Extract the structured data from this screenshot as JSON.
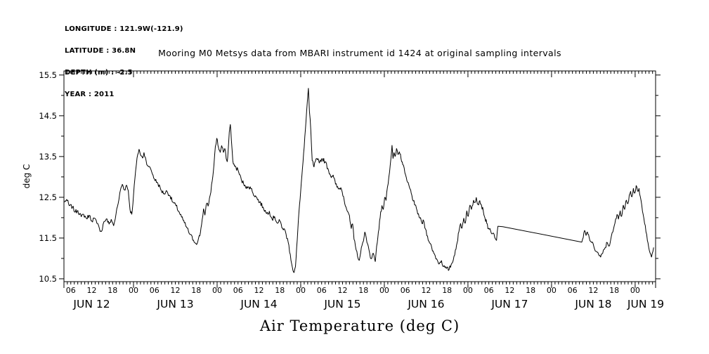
{
  "header": {
    "lines": [
      "LONGITUDE : 121.9W(-121.9)",
      "LATITUDE : 36.8N",
      "DEPTH (m) : -2.5",
      "YEAR : 2011"
    ]
  },
  "title": "Mooring M0 Metsys data from MBARI instrument id 1424 at original sampling intervals",
  "colors": {
    "foreground": "#000000",
    "background": "#ffffff"
  },
  "chart_data": {
    "type": "line",
    "title": "Mooring M0 Metsys data from MBARI instrument id 1424 at original sampling intervals",
    "xlabel": "Air Temperature (deg C)",
    "ylabel": "deg C",
    "x_unit": "hours since 2011-06-12 00:00",
    "x_range_hours": [
      4.03,
      173.87
    ],
    "ylim": [
      10.43,
      15.6
    ],
    "y_major_ticks": [
      10.5,
      11.5,
      12.5,
      13.5,
      14.5,
      15.5
    ],
    "y_tick_step": 0.5,
    "x_minor_tick_hours": 1,
    "x_hour_label_step": 6,
    "hour_label_names": {
      "0": "00",
      "6": "06",
      "12": "12",
      "18": "18"
    },
    "month_label": "JUN",
    "day_numbers": [
      12,
      13,
      14,
      15,
      16,
      17,
      18,
      19
    ],
    "day_start_hours": [
      0,
      24,
      48,
      72,
      96,
      120,
      144,
      168
    ],
    "grid": false,
    "legend": "none",
    "line_color": "#000000",
    "gap_no_noise_hours": [
      128.6,
      152.7
    ],
    "noise_amp_degC": 0.055,
    "series": [
      {
        "name": "air temperature (deg C)",
        "points": [
          [
            4.2,
            12.38
          ],
          [
            4.8,
            12.45
          ],
          [
            5.5,
            12.3
          ],
          [
            6.5,
            12.26
          ],
          [
            7.3,
            12.14
          ],
          [
            8,
            12.18
          ],
          [
            9,
            12.02
          ],
          [
            9.7,
            12.08
          ],
          [
            10.5,
            11.98
          ],
          [
            11.3,
            12.06
          ],
          [
            12,
            11.92
          ],
          [
            12.7,
            11.99
          ],
          [
            13.5,
            11.86
          ],
          [
            14.2,
            11.74
          ],
          [
            14.8,
            11.66
          ],
          [
            15.5,
            11.9
          ],
          [
            16.2,
            11.97
          ],
          [
            17,
            11.84
          ],
          [
            17.6,
            11.96
          ],
          [
            18.3,
            11.8
          ],
          [
            19,
            12.1
          ],
          [
            19.6,
            12.35
          ],
          [
            20.3,
            12.7
          ],
          [
            20.8,
            12.82
          ],
          [
            21.4,
            12.68
          ],
          [
            22,
            12.8
          ],
          [
            22.5,
            12.66
          ],
          [
            23,
            12.2
          ],
          [
            23.5,
            12.08
          ],
          [
            24,
            12.55
          ],
          [
            24.6,
            13.15
          ],
          [
            25.2,
            13.55
          ],
          [
            25.6,
            13.68
          ],
          [
            26.1,
            13.52
          ],
          [
            26.6,
            13.46
          ],
          [
            27,
            13.6
          ],
          [
            27.6,
            13.4
          ],
          [
            28.3,
            13.25
          ],
          [
            29,
            13.18
          ],
          [
            30,
            12.95
          ],
          [
            31,
            12.84
          ],
          [
            32,
            12.66
          ],
          [
            32.8,
            12.59
          ],
          [
            33.6,
            12.65
          ],
          [
            34.5,
            12.53
          ],
          [
            35.3,
            12.38
          ],
          [
            36.2,
            12.29
          ],
          [
            37.2,
            12.12
          ],
          [
            38.2,
            11.94
          ],
          [
            39.2,
            11.77
          ],
          [
            40.2,
            11.59
          ],
          [
            41.2,
            11.45
          ],
          [
            41.9,
            11.37
          ],
          [
            42.5,
            11.43
          ],
          [
            43.2,
            11.63
          ],
          [
            43.7,
            11.95
          ],
          [
            44.1,
            12.22
          ],
          [
            44.5,
            12.06
          ],
          [
            45,
            12.35
          ],
          [
            45.4,
            12.28
          ],
          [
            46,
            12.55
          ],
          [
            46.6,
            12.9
          ],
          [
            47.1,
            13.3
          ],
          [
            47.5,
            13.75
          ],
          [
            47.9,
            13.95
          ],
          [
            48.4,
            13.72
          ],
          [
            48.9,
            13.6
          ],
          [
            49.3,
            13.77
          ],
          [
            49.8,
            13.6
          ],
          [
            50.2,
            13.7
          ],
          [
            50.6,
            13.45
          ],
          [
            50.9,
            13.37
          ],
          [
            51.2,
            13.7
          ],
          [
            51.5,
            14.1
          ],
          [
            51.8,
            14.29
          ],
          [
            52.1,
            13.9
          ],
          [
            52.5,
            13.4
          ],
          [
            53,
            13.26
          ],
          [
            54,
            13.17
          ],
          [
            55,
            12.91
          ],
          [
            56,
            12.8
          ],
          [
            56.7,
            12.72
          ],
          [
            57.5,
            12.76
          ],
          [
            58.3,
            12.6
          ],
          [
            59.2,
            12.51
          ],
          [
            60.2,
            12.38
          ],
          [
            61.2,
            12.26
          ],
          [
            62.2,
            12.1
          ],
          [
            63,
            12.16
          ],
          [
            63.8,
            11.96
          ],
          [
            64.5,
            12.03
          ],
          [
            65.3,
            11.86
          ],
          [
            66,
            11.92
          ],
          [
            66.8,
            11.74
          ],
          [
            67.6,
            11.66
          ],
          [
            68.4,
            11.4
          ],
          [
            69,
            11.1
          ],
          [
            69.6,
            10.78
          ],
          [
            70.1,
            10.65
          ],
          [
            70.5,
            10.8
          ],
          [
            71,
            11.45
          ],
          [
            71.5,
            12.15
          ],
          [
            72,
            12.67
          ],
          [
            72.5,
            13.2
          ],
          [
            73,
            13.73
          ],
          [
            73.5,
            14.35
          ],
          [
            73.9,
            14.85
          ],
          [
            74.2,
            15.18
          ],
          [
            74.5,
            14.6
          ],
          [
            74.9,
            14.15
          ],
          [
            75.3,
            13.4
          ],
          [
            75.8,
            13.24
          ],
          [
            76.2,
            13.38
          ],
          [
            76.8,
            13.42
          ],
          [
            77.5,
            13.38
          ],
          [
            78.2,
            13.45
          ],
          [
            79,
            13.37
          ],
          [
            79.8,
            13.21
          ],
          [
            80.6,
            13.02
          ],
          [
            81.3,
            13.05
          ],
          [
            82,
            12.82
          ],
          [
            82.8,
            12.7
          ],
          [
            83.5,
            12.74
          ],
          [
            84.3,
            12.52
          ],
          [
            85,
            12.26
          ],
          [
            85.8,
            12.09
          ],
          [
            86.5,
            11.73
          ],
          [
            86.9,
            11.85
          ],
          [
            87.3,
            11.47
          ],
          [
            87.9,
            11.21
          ],
          [
            88.8,
            10.95
          ],
          [
            89.2,
            11.13
          ],
          [
            89.8,
            11.39
          ],
          [
            90.4,
            11.65
          ],
          [
            91,
            11.39
          ],
          [
            91.6,
            11.21
          ],
          [
            92.2,
            10.99
          ],
          [
            92.8,
            11.13
          ],
          [
            93.4,
            10.92
          ],
          [
            93.8,
            11.3
          ],
          [
            94.3,
            11.65
          ],
          [
            94.8,
            12.0
          ],
          [
            95.3,
            12.3
          ],
          [
            95.7,
            12.2
          ],
          [
            96.1,
            12.5
          ],
          [
            96.5,
            12.42
          ],
          [
            96.9,
            12.75
          ],
          [
            97.3,
            13.0
          ],
          [
            97.7,
            13.3
          ],
          [
            98.0,
            13.55
          ],
          [
            98.2,
            13.78
          ],
          [
            98.5,
            13.45
          ],
          [
            98.8,
            13.6
          ],
          [
            99.1,
            13.5
          ],
          [
            99.5,
            13.7
          ],
          [
            99.9,
            13.55
          ],
          [
            100.3,
            13.62
          ],
          [
            100.8,
            13.45
          ],
          [
            101.3,
            13.3
          ],
          [
            101.9,
            13.1
          ],
          [
            102.5,
            12.9
          ],
          [
            103.2,
            12.75
          ],
          [
            103.9,
            12.55
          ],
          [
            104.7,
            12.31
          ],
          [
            105.4,
            12.17
          ],
          [
            106.2,
            11.99
          ],
          [
            106.8,
            11.86
          ],
          [
            107.3,
            11.92
          ],
          [
            107.8,
            11.72
          ],
          [
            108.4,
            11.55
          ],
          [
            109,
            11.38
          ],
          [
            109.6,
            11.27
          ],
          [
            110.2,
            11.13
          ],
          [
            111,
            10.99
          ],
          [
            111.8,
            10.87
          ],
          [
            112.4,
            10.95
          ],
          [
            113,
            10.8
          ],
          [
            113.8,
            10.75
          ],
          [
            114.6,
            10.73
          ],
          [
            115.2,
            10.85
          ],
          [
            115.8,
            10.96
          ],
          [
            116.4,
            11.21
          ],
          [
            116.9,
            11.39
          ],
          [
            117.4,
            11.65
          ],
          [
            117.9,
            11.86
          ],
          [
            118.3,
            11.74
          ],
          [
            118.8,
            11.99
          ],
          [
            119.2,
            11.86
          ],
          [
            119.7,
            12.17
          ],
          [
            120.1,
            12.03
          ],
          [
            120.6,
            12.31
          ],
          [
            121,
            12.2
          ],
          [
            121.6,
            12.43
          ],
          [
            122,
            12.37
          ],
          [
            122.4,
            12.5
          ],
          [
            122.9,
            12.33
          ],
          [
            123.4,
            12.42
          ],
          [
            123.9,
            12.3
          ],
          [
            124.4,
            12.17
          ],
          [
            124.9,
            11.99
          ],
          [
            125.4,
            11.86
          ],
          [
            125.9,
            11.74
          ],
          [
            126.5,
            11.68
          ],
          [
            127.1,
            11.61
          ],
          [
            127.7,
            11.51
          ],
          [
            128.2,
            11.44
          ],
          [
            128.6,
            11.79
          ],
          [
            130,
            11.78
          ],
          [
            152.7,
            11.4
          ],
          [
            153.1,
            11.51
          ],
          [
            153.5,
            11.69
          ],
          [
            153.9,
            11.56
          ],
          [
            154.3,
            11.65
          ],
          [
            154.8,
            11.51
          ],
          [
            155.5,
            11.39
          ],
          [
            156.2,
            11.27
          ],
          [
            156.9,
            11.17
          ],
          [
            157.5,
            11.1
          ],
          [
            158.1,
            11.03
          ],
          [
            158.7,
            11.13
          ],
          [
            159.4,
            11.27
          ],
          [
            160,
            11.39
          ],
          [
            160.5,
            11.3
          ],
          [
            161,
            11.47
          ],
          [
            161.6,
            11.65
          ],
          [
            162.2,
            11.86
          ],
          [
            162.8,
            12.08
          ],
          [
            163.2,
            11.96
          ],
          [
            163.7,
            12.17
          ],
          [
            164.1,
            12.03
          ],
          [
            164.6,
            12.31
          ],
          [
            165,
            12.2
          ],
          [
            165.5,
            12.43
          ],
          [
            165.9,
            12.34
          ],
          [
            166.3,
            12.55
          ],
          [
            166.7,
            12.65
          ],
          [
            167.1,
            12.51
          ],
          [
            167.5,
            12.72
          ],
          [
            167.9,
            12.6
          ],
          [
            168.3,
            12.79
          ],
          [
            168.7,
            12.65
          ],
          [
            169.1,
            12.72
          ],
          [
            169.5,
            12.51
          ],
          [
            169.9,
            12.31
          ],
          [
            170.3,
            12.08
          ],
          [
            170.7,
            11.86
          ],
          [
            171.1,
            11.65
          ],
          [
            171.5,
            11.44
          ],
          [
            171.9,
            11.27
          ],
          [
            172.3,
            11.13
          ],
          [
            172.7,
            11.03
          ],
          [
            173.1,
            11.17
          ],
          [
            173.3,
            11.27
          ]
        ]
      }
    ]
  }
}
